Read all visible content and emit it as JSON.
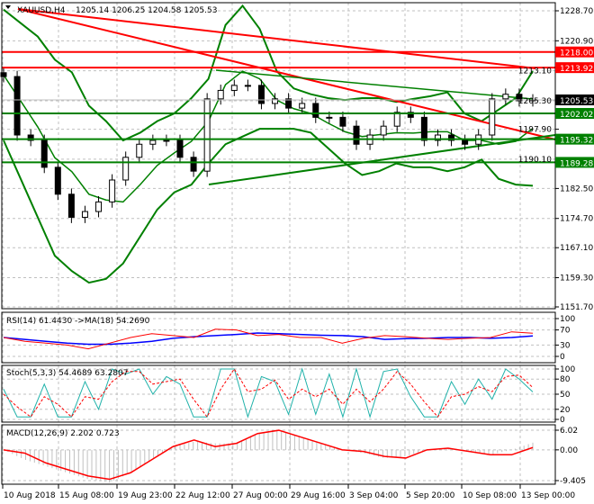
{
  "header": {
    "symbol_label": "XAUUSD,H4",
    "ohlc": "1205.14 1206.25 1204.58 1205.53"
  },
  "colors": {
    "bull": "#000000",
    "bear": "#000000",
    "band": "#008000",
    "support": "#008000",
    "resistance": "#ff0000",
    "rsi": "#ff0000",
    "rsi_ma": "#0000ff",
    "stoch_main": "#20b2aa",
    "stoch_signal": "#ff0000",
    "macd_hist": "#c0c0c0",
    "macd_signal": "#ff0000"
  },
  "chart_data": [
    {
      "type": "candlestick",
      "title": "XAUUSD,H4",
      "ylim": [
        1151.7,
        1228.7
      ],
      "y_ticks": [
        "1228.70",
        "1220.90",
        "1213.10",
        "1205.30",
        "1197.90",
        "1190.10",
        "1182.50",
        "1174.70",
        "1167.10",
        "1159.30",
        "1151.70"
      ],
      "x_ticks": [
        "10 Aug 2018",
        "15 Aug 08:00",
        "19 Aug 23:00",
        "22 Aug 12:00",
        "27 Aug 00:00",
        "29 Aug 16:00",
        "3 Sep 04:00",
        "5 Sep 20:00",
        "10 Sep 08:00",
        "13 Sep 00:00"
      ],
      "closes": [
        1211.6,
        1196.4,
        1195,
        1188,
        1181,
        1175,
        1176.5,
        1179,
        1184.7,
        1190.6,
        1194,
        1195,
        1195,
        1190.6,
        1187,
        1205.8,
        1208,
        1209.3,
        1209.3,
        1204.6,
        1205.8,
        1203.4,
        1204.6,
        1201,
        1201,
        1198.7,
        1194,
        1196.4,
        1198.7,
        1202.3,
        1201,
        1195,
        1196.4,
        1195,
        1194,
        1196.4,
        1205.8,
        1207,
        1205.3,
        1205.53
      ],
      "bollinger_upper": [
        1229,
        1225.5,
        1222,
        1216,
        1212.7,
        1204,
        1200,
        1195,
        1197,
        1200,
        1202,
        1206,
        1211,
        1225,
        1230,
        1224,
        1213,
        1208.5,
        1207,
        1206,
        1205.5,
        1206,
        1206,
        1205,
        1205.8,
        1206.5,
        1207.5,
        1202,
        1200,
        1203,
        1206,
        1213
      ],
      "bollinger_lower": [
        1195,
        1185,
        1175,
        1165,
        1161,
        1158,
        1159,
        1163,
        1170,
        1177,
        1181.5,
        1183.5,
        1189,
        1194,
        1196,
        1198,
        1198,
        1198,
        1197,
        1193,
        1189,
        1186,
        1187,
        1189,
        1188,
        1188,
        1187,
        1188,
        1190,
        1185,
        1183.5,
        1183.2
      ],
      "horizontal_levels": [
        {
          "value": "1218.00",
          "kind": "resistance"
        },
        {
          "value": "1213.92",
          "kind": "resistance"
        },
        {
          "value": "1202.02",
          "kind": "support"
        },
        {
          "value": "1195.32",
          "kind": "support"
        },
        {
          "value": "1189.28",
          "kind": "support"
        }
      ],
      "current_price": "1205.53"
    },
    {
      "type": "line",
      "title": "RSI(14) 61.4430  ->MA(18) 54.2690",
      "ylim": [
        0,
        100
      ],
      "y_ticks": [
        "100",
        "70",
        "30",
        "0"
      ],
      "series": [
        {
          "name": "RSI(14)",
          "values": [
            50,
            40,
            35,
            30,
            20,
            35,
            50,
            60,
            55,
            50,
            72,
            70,
            55,
            58,
            50,
            50,
            35,
            48,
            55,
            52,
            48,
            45,
            48,
            50,
            65,
            61.44
          ]
        },
        {
          "name": "MA(18)",
          "values": [
            50,
            45,
            40,
            35,
            32,
            32,
            35,
            40,
            48,
            52,
            55,
            58,
            62,
            60,
            58,
            56,
            55,
            52,
            45,
            47,
            48,
            50,
            50,
            48,
            50,
            54.27
          ]
        }
      ]
    },
    {
      "type": "line",
      "title": "Stoch(5,3,3) 54.4689 63.2807",
      "ylim": [
        0,
        100
      ],
      "y_ticks": [
        "100",
        "80",
        "50",
        "20",
        "0"
      ],
      "series": [
        {
          "name": "Stoch main",
          "values": [
            60,
            5,
            5,
            70,
            5,
            5,
            75,
            20,
            100,
            90,
            100,
            50,
            85,
            70,
            5,
            5,
            100,
            100,
            5,
            85,
            75,
            10,
            100,
            10,
            90,
            5,
            100,
            5,
            95,
            100,
            45,
            5,
            5,
            75,
            30,
            80,
            40,
            100,
            80,
            54.47
          ]
        },
        {
          "name": "Stoch signal",
          "values": [
            50,
            25,
            5,
            45,
            30,
            5,
            45,
            40,
            75,
            95,
            95,
            70,
            75,
            80,
            40,
            5,
            60,
            100,
            55,
            60,
            78,
            40,
            60,
            45,
            60,
            30,
            60,
            35,
            60,
            95,
            70,
            35,
            5,
            45,
            50,
            65,
            55,
            85,
            88,
            63.28
          ]
        }
      ]
    },
    {
      "type": "bar",
      "title": "MACD(12,26,9) 2.202 0.723",
      "ylim": [
        -9.405,
        6.02
      ],
      "y_ticks": [
        "6.02",
        "0.00",
        "-9.405"
      ],
      "series": [
        {
          "name": "MACD",
          "values": [
            0,
            -3,
            -5,
            -7,
            -9,
            -10,
            -7,
            -3,
            1,
            2.5,
            2,
            2,
            5,
            6,
            4,
            2,
            0,
            -1,
            -2.5,
            -2,
            0,
            0.5,
            -0.5,
            -1.5,
            0,
            2.2
          ]
        },
        {
          "name": "Signal",
          "values": [
            0,
            -1,
            -4,
            -6,
            -8,
            -9,
            -7,
            -3,
            1,
            3,
            1,
            2,
            5,
            6,
            4,
            2,
            0,
            -0.5,
            -2,
            -2.5,
            0,
            0.5,
            -0.5,
            -1.5,
            -1.5,
            0.72
          ]
        }
      ]
    }
  ]
}
